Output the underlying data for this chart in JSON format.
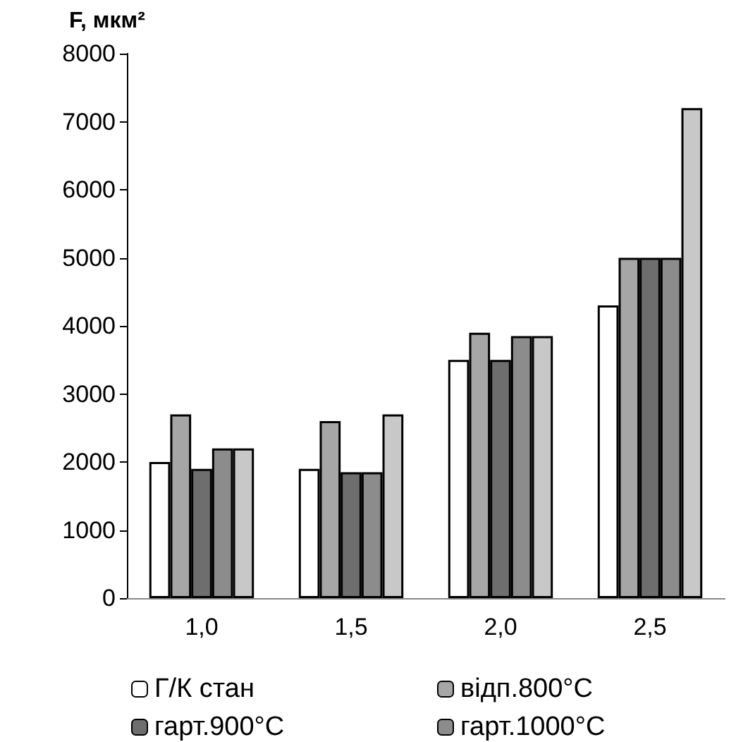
{
  "chart_data": {
    "type": "bar",
    "ylabel": "F, мкм²",
    "categories": [
      "1,0",
      "1,5",
      "2,0",
      "2,5"
    ],
    "series": [
      {
        "name": "Г/К стан",
        "color": "#ffffff",
        "values": [
          2000,
          1900,
          3500,
          4300
        ]
      },
      {
        "name": "відп.800°C",
        "color": "#a6a6a6",
        "values": [
          2700,
          2600,
          3900,
          5000
        ]
      },
      {
        "name": "гарт.900°C",
        "color": "#6e6e6e",
        "values": [
          1900,
          1850,
          3500,
          5000
        ]
      },
      {
        "name": "гарт.1000°C",
        "color": "#8c8c8c",
        "values": [
          2200,
          1850,
          3850,
          5000
        ]
      },
      {
        "color": "#c8c8c8",
        "values": [
          2200,
          2700,
          3850,
          7200
        ]
      }
    ],
    "ylim": [
      0,
      8000
    ],
    "yticks": [
      0,
      1000,
      2000,
      3000,
      4000,
      5000,
      6000,
      7000,
      8000
    ],
    "grid": false,
    "legend": "bottom"
  }
}
